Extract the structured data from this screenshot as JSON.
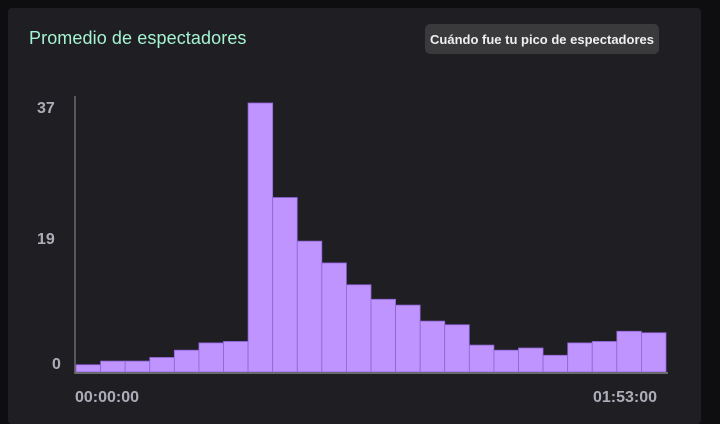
{
  "header": {
    "title": "Promedio de espectadores",
    "peak_button_label": "Cuándo fue tu pico de espectadores"
  },
  "colors": {
    "accent": "#bf94ff",
    "title": "#a5f3d0",
    "panel": "#1f1f23",
    "axis": "#adadb8"
  },
  "chart_data": {
    "type": "bar",
    "title": "Promedio de espectadores",
    "xlabel": "",
    "ylabel": "",
    "ylim": [
      0,
      37
    ],
    "y_ticks": [
      "0",
      "19",
      "37"
    ],
    "x_ticks": [
      "00:00:00",
      "01:53:00"
    ],
    "grid": false,
    "values": [
      1,
      1.5,
      1.5,
      2,
      3,
      4,
      4.2,
      37,
      24,
      18,
      15,
      12,
      10,
      9.2,
      7,
      6.5,
      3.7,
      3,
      3.3,
      2.3,
      4,
      4.2,
      5.6,
      5.4
    ]
  }
}
